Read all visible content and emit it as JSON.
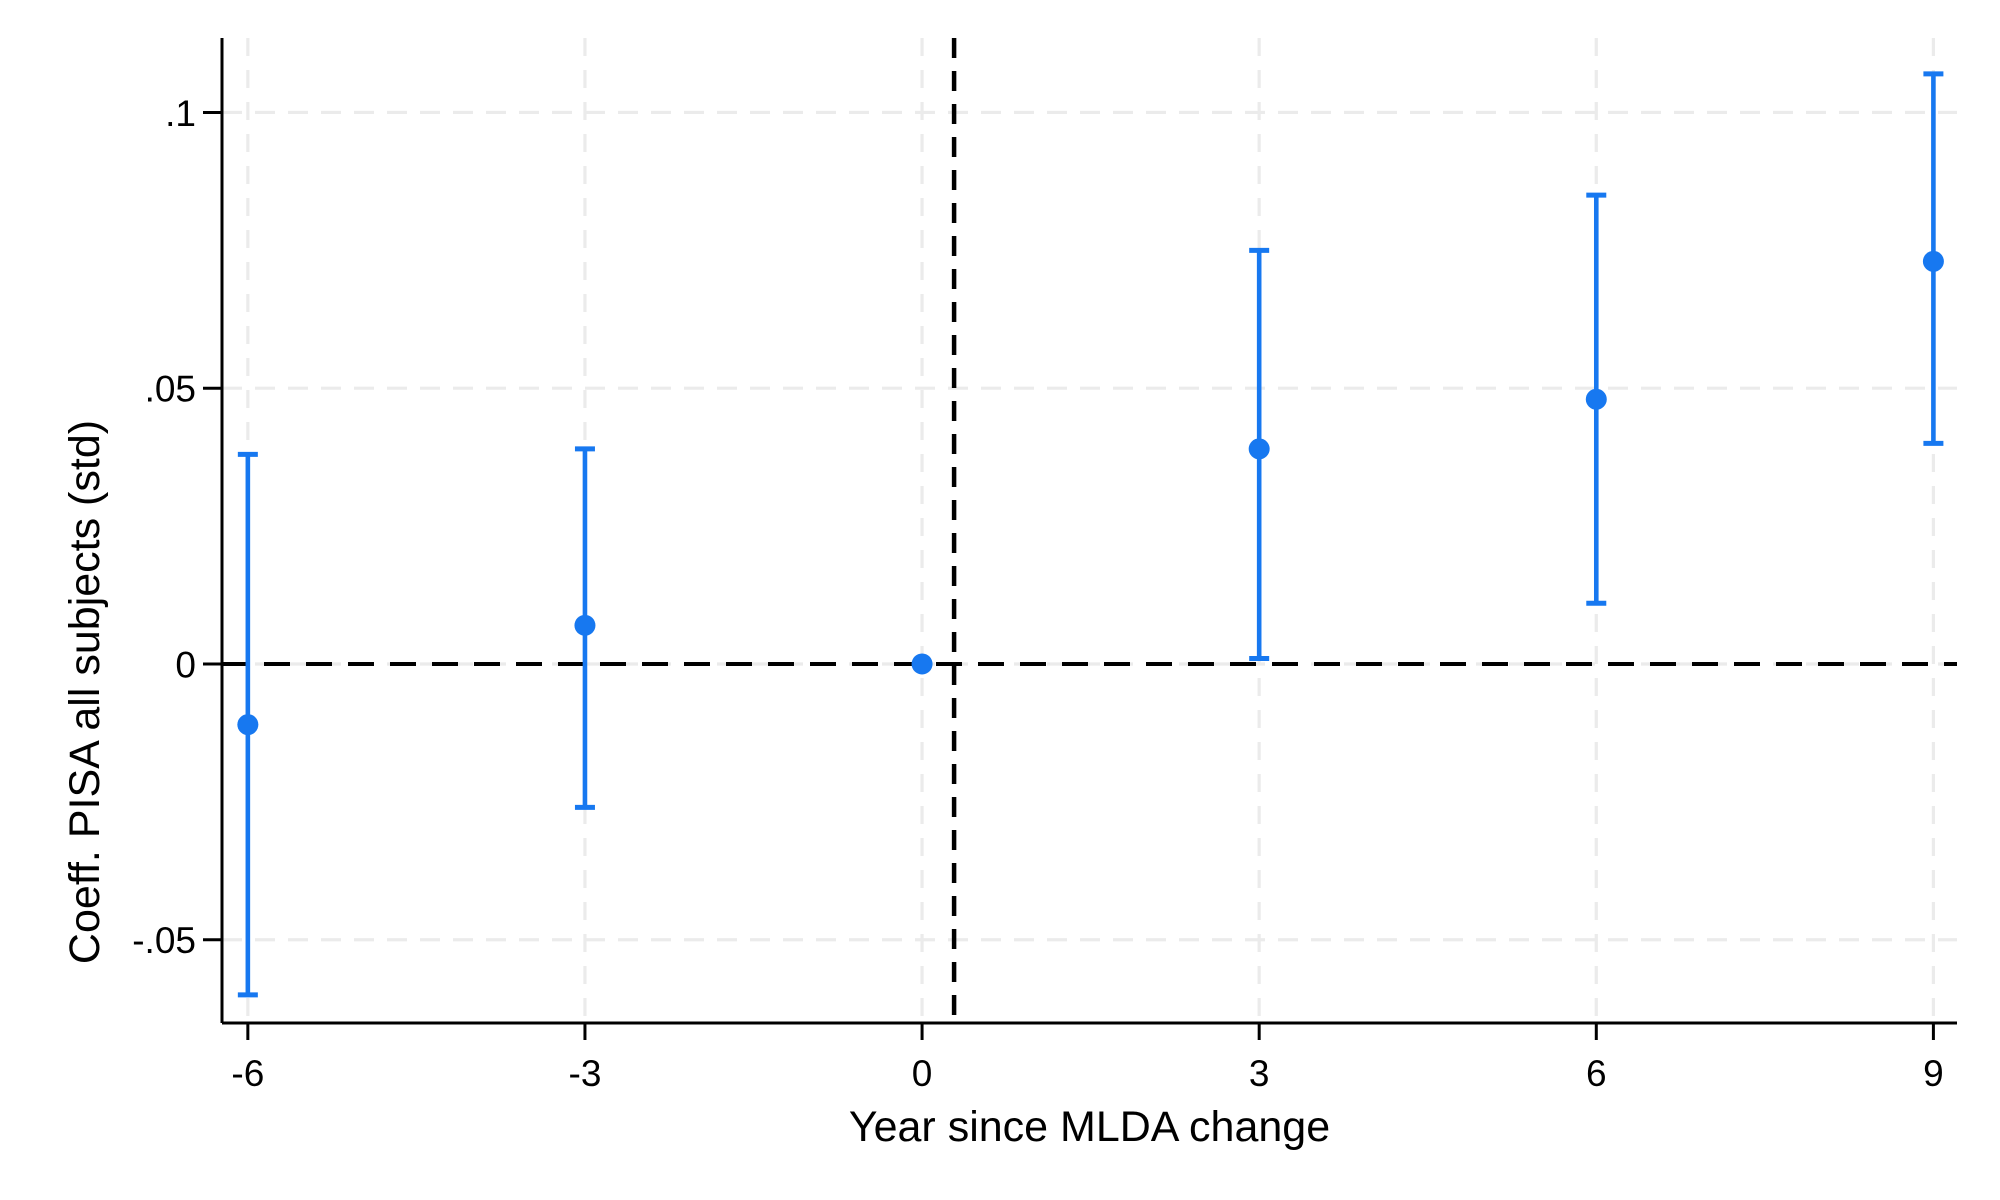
{
  "figure": {
    "background": "#FFFFFF",
    "title": ""
  },
  "chart_data": {
    "type": "scatter",
    "subtype": "event-study-coefficient-plot-with-error-bars",
    "title": "",
    "xlabel": "Year since MLDA change",
    "ylabel": "Coeff. PISA all subjects (std)",
    "xlim": [
      -6.23,
      9.21
    ],
    "ylim": [
      -0.0651,
      0.1135
    ],
    "grid": "on",
    "legend": "none",
    "x_ticks": [
      {
        "value": -6,
        "label": "-6"
      },
      {
        "value": -3,
        "label": "-3"
      },
      {
        "value": 0,
        "label": "0"
      },
      {
        "value": 3,
        "label": "3"
      },
      {
        "value": 6,
        "label": "6"
      },
      {
        "value": 9,
        "label": "9"
      }
    ],
    "y_ticks": [
      {
        "value": 0.1,
        "label": ".1"
      },
      {
        "value": 0.05,
        "label": ".05"
      },
      {
        "value": 0,
        "label": "0"
      },
      {
        "value": -0.05,
        "label": "-.05"
      }
    ],
    "series": [
      {
        "name": "coefficient-estimates",
        "marker": "circle",
        "color": "#1778F0",
        "points": [
          {
            "x": -6,
            "y": -0.011,
            "ci_low": -0.06,
            "ci_high": 0.038
          },
          {
            "x": -3,
            "y": 0.007,
            "ci_low": -0.026,
            "ci_high": 0.039
          },
          {
            "x": 0,
            "y": 0.0,
            "ci_low": null,
            "ci_high": null
          },
          {
            "x": 3,
            "y": 0.039,
            "ci_low": 0.001,
            "ci_high": 0.075
          },
          {
            "x": 6,
            "y": 0.048,
            "ci_low": 0.011,
            "ci_high": 0.085
          },
          {
            "x": 9,
            "y": 0.073,
            "ci_low": 0.04,
            "ci_high": 0.107
          }
        ]
      }
    ],
    "reference_lines": [
      {
        "orientation": "horizontal",
        "value": 0,
        "style": "dashed",
        "color": "#000000"
      },
      {
        "orientation": "vertical",
        "value": 0.285,
        "style": "dashed",
        "color": "#000000"
      }
    ],
    "colors": {
      "accent": "#1778F0",
      "gridline": "#EBEBEB",
      "axis": "#000000",
      "text": "#000000",
      "background": "#FFFFFF"
    }
  }
}
